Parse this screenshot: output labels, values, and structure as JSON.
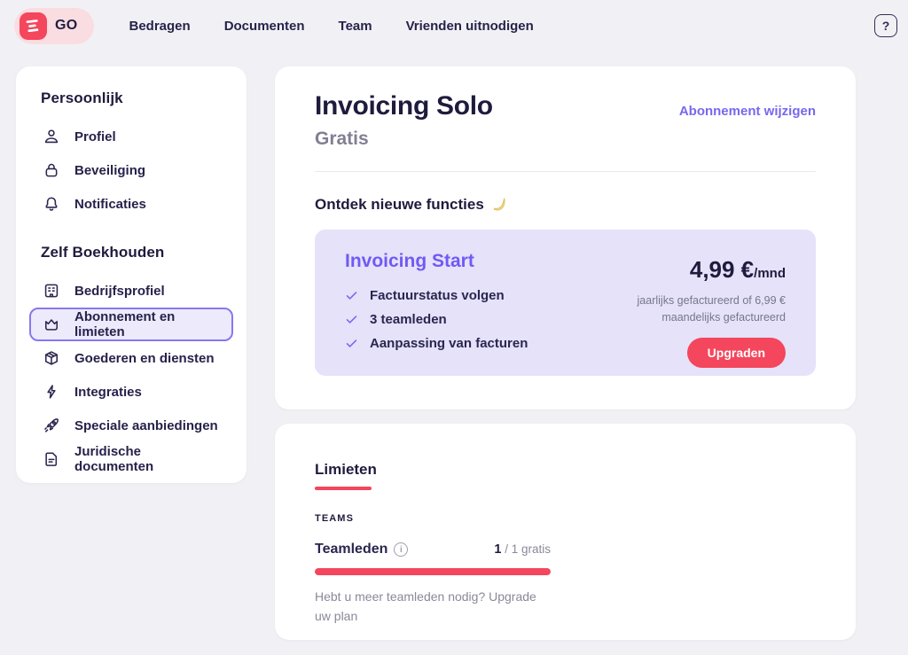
{
  "topbar": {
    "logo_text": "GO",
    "nav": [
      {
        "label": "Bedragen"
      },
      {
        "label": "Documenten"
      },
      {
        "label": "Team"
      },
      {
        "label": "Vrienden uitnodigen"
      }
    ],
    "help_label": "?"
  },
  "sidebar": {
    "sections": [
      {
        "title": "Persoonlijk",
        "items": [
          {
            "label": "Profiel",
            "icon": "user-icon",
            "selected": false
          },
          {
            "label": "Beveiliging",
            "icon": "lock-icon",
            "selected": false
          },
          {
            "label": "Notificaties",
            "icon": "bell-icon",
            "selected": false
          }
        ]
      },
      {
        "title": "Zelf Boekhouden",
        "items": [
          {
            "label": "Bedrijfsprofiel",
            "icon": "building-icon",
            "selected": false
          },
          {
            "label": "Abonnement en limieten",
            "icon": "crown-icon",
            "selected": true
          },
          {
            "label": "Goederen en diensten",
            "icon": "package-icon",
            "selected": false
          },
          {
            "label": "Integraties",
            "icon": "lightning-icon",
            "selected": false
          },
          {
            "label": "Speciale aanbiedingen",
            "icon": "rocket-icon",
            "selected": false
          },
          {
            "label": "Juridische documenten",
            "icon": "document-icon",
            "selected": false
          }
        ]
      }
    ]
  },
  "plan": {
    "title": "Invoicing Solo",
    "subtitle": "Gratis",
    "change_link": "Abonnement wijzigen",
    "discover_heading": "Ontdek nieuwe functies",
    "discover_icon": "comet-icon",
    "offer": {
      "name": "Invoicing Start",
      "features": [
        "Factuurstatus volgen",
        "3 teamleden",
        "Aanpassing van facturen"
      ],
      "price": "4,99 €",
      "price_suffix": "/mnd",
      "billing_note_line1": "jaarlijks gefactureerd of 6,99 €",
      "billing_note_line2": "maandelijks gefactureerd",
      "cta_label": "Upgraden"
    }
  },
  "limits": {
    "title": "Limieten",
    "group_label": "TEAMS",
    "metric_label": "Teamleden",
    "info_icon": "info-icon",
    "usage_current": "1",
    "usage_rest": " / 1 gratis",
    "progress_percent": 100,
    "note": "Hebt u meer teamleden nodig? Upgrade uw plan"
  },
  "colors": {
    "accent_red": "#f4465c",
    "accent_purple": "#7668ee",
    "lavender_bg": "#e5e2f9",
    "page_bg": "#f1f1f5",
    "text_dark": "#1f1b3d",
    "text_gray": "#8b8899"
  }
}
